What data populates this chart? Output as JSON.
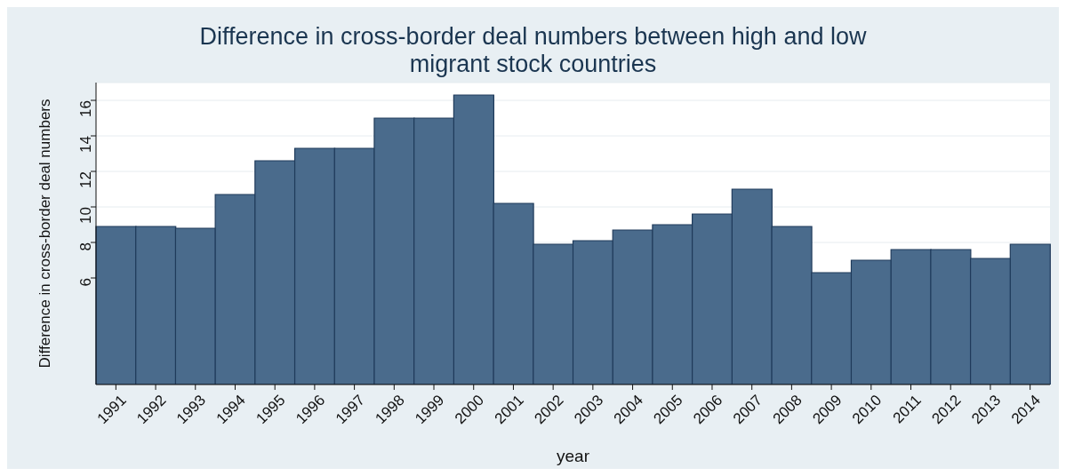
{
  "chart_data": {
    "type": "bar",
    "title": "Difference in cross-border deal numbers between high and low migrant stock countries",
    "xlabel": "year",
    "ylabel": "Difference in cross-border deal numbers",
    "categories": [
      "1991",
      "1992",
      "1993",
      "1994",
      "1995",
      "1996",
      "1997",
      "1998",
      "1999",
      "2000",
      "2001",
      "2002",
      "2003",
      "2004",
      "2005",
      "2006",
      "2007",
      "2008",
      "2009",
      "2010",
      "2011",
      "2012",
      "2013",
      "2014"
    ],
    "values": [
      8.9,
      8.9,
      8.8,
      10.7,
      12.6,
      13.3,
      13.3,
      15.0,
      15.0,
      16.3,
      10.2,
      7.9,
      8.1,
      8.7,
      9.0,
      9.6,
      11.0,
      8.9,
      6.3,
      7.0,
      7.6,
      7.6,
      7.1,
      7.9
    ],
    "color": "#4a6b8c",
    "ylim": [
      0,
      17
    ],
    "yticks": [
      6,
      8,
      10,
      12,
      14,
      16
    ],
    "grid": "y"
  }
}
